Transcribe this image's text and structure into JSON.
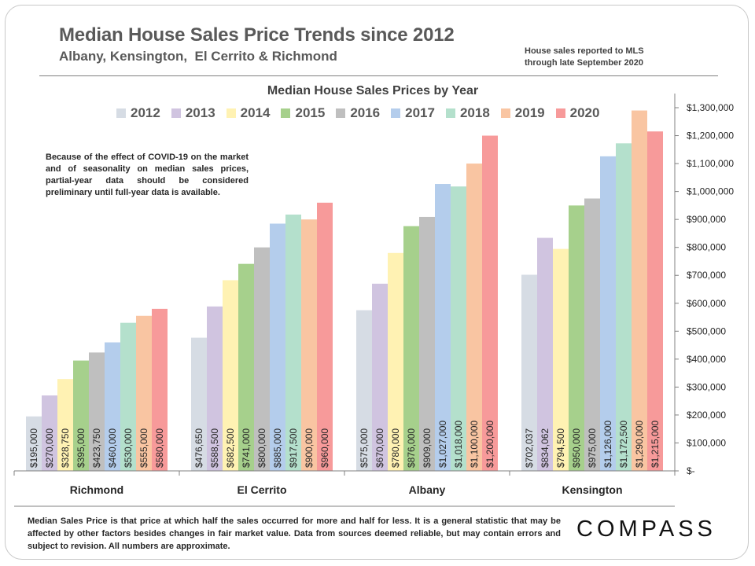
{
  "header": {
    "title": "Median House Sales Price Trends since 2012",
    "subtitle": "Albany, Kensington,  El Cerrito & Richmond",
    "note_line1": "House sales reported to MLS",
    "note_line2": "through late September 2020"
  },
  "covid_note": "Because of the effect of COVID-19 on the market and of seasonality on median sales prices, partial-year data should be considered preliminary until full-year data is available.",
  "footer": "Median Sales Price is that price at which half the sales occurred for more and half for less. It is a general statistic that may be affected by other factors besides changes in fair market value. Data from sources deemed reliable, but may contain errors and subject to revision.  All numbers are approximate.",
  "brand": "COMPASS",
  "colors": {
    "2012": "#d6dce4",
    "2013": "#d0c4e0",
    "2014": "#fff2b3",
    "2015": "#a6d08c",
    "2016": "#bfbfbf",
    "2017": "#b4cdec",
    "2018": "#b4e0cc",
    "2019": "#f9c5a2",
    "2020": "#f79a9a"
  },
  "chart_data": {
    "type": "bar",
    "title": "Median House Sales Prices by Year",
    "xlabel": "",
    "ylabel": "",
    "ylim": [
      0,
      1300000
    ],
    "y_ticks": [
      "$-",
      "$100,000",
      "$200,000",
      "$300,000",
      "$400,000",
      "$500,000",
      "$600,000",
      "$700,000",
      "$800,000",
      "$900,000",
      "$1,000,000",
      "$1,100,000",
      "$1,200,000",
      "$1,300,000"
    ],
    "y_axis_position": "right",
    "legend_position": "top",
    "grid": false,
    "categories": [
      "Richmond",
      "El Cerrito",
      "Albany",
      "Kensington"
    ],
    "series": [
      {
        "name": "2012",
        "values": [
          195000,
          476650,
          575000,
          702037
        ],
        "labels": [
          "$195,000",
          "$476,650",
          "$575,000",
          "$702,037"
        ]
      },
      {
        "name": "2013",
        "values": [
          270000,
          588500,
          670000,
          834062
        ],
        "labels": [
          "$270,000",
          "$588,500",
          "$670,000",
          "$834,062"
        ]
      },
      {
        "name": "2014",
        "values": [
          328750,
          682500,
          780000,
          794500
        ],
        "labels": [
          "$328,750",
          "$682,500",
          "$780,000",
          "$794,500"
        ]
      },
      {
        "name": "2015",
        "values": [
          395000,
          741000,
          876000,
          950000
        ],
        "labels": [
          "$395,000",
          "$741,000",
          "$876,000",
          "$950,000"
        ]
      },
      {
        "name": "2016",
        "values": [
          423750,
          800000,
          909000,
          975000
        ],
        "labels": [
          "$423,750",
          "$800,000",
          "$909,000",
          "$975,000"
        ]
      },
      {
        "name": "2017",
        "values": [
          460000,
          885000,
          1027000,
          1126000
        ],
        "labels": [
          "$460,000",
          "$885,000",
          "$1,027,000",
          "$1,126,000"
        ]
      },
      {
        "name": "2018",
        "values": [
          530000,
          917500,
          1018000,
          1172500
        ],
        "labels": [
          "$530,000",
          "$917,500",
          "$1,018,000",
          "$1,172,500"
        ]
      },
      {
        "name": "2019",
        "values": [
          555000,
          900000,
          1100000,
          1290000
        ],
        "labels": [
          "$555,000",
          "$900,000",
          "$1,100,000",
          "$1,290,000"
        ]
      },
      {
        "name": "2020",
        "values": [
          580000,
          960000,
          1200000,
          1215000
        ],
        "labels": [
          "$580,000",
          "$960,000",
          "$1,200,000",
          "$1,215,000"
        ]
      }
    ]
  }
}
